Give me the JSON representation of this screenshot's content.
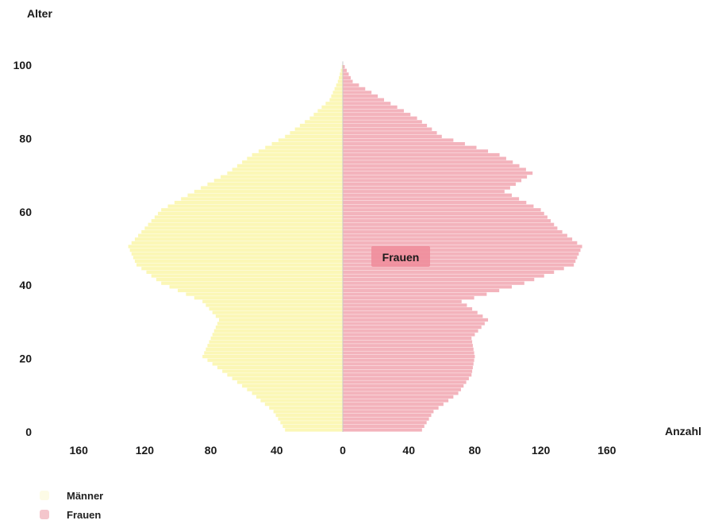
{
  "chart_data": {
    "type": "bar",
    "orientation": "horizontal-pyramid",
    "y_axis_label": "Alter",
    "x_axis_label": "Anzahl",
    "y_ticks": [
      0,
      20,
      40,
      60,
      80,
      100
    ],
    "x_tick_labels": [
      "160",
      "120",
      "80",
      "40",
      "0",
      "40",
      "80",
      "120",
      "160"
    ],
    "age_range": [
      0,
      101
    ],
    "colors": {
      "maenner": "#fbf7b6",
      "frauen": "#ef9aa6"
    },
    "inner_label": "Frauen",
    "series": [
      {
        "name": "Männer",
        "side": "left",
        "ages": [
          0,
          5,
          10,
          15,
          20,
          25,
          30,
          35,
          40,
          45,
          50,
          55,
          60,
          65,
          70,
          75,
          80,
          85,
          90,
          95,
          100
        ],
        "values": [
          35,
          42,
          55,
          70,
          85,
          80,
          75,
          85,
          110,
          125,
          130,
          120,
          110,
          90,
          70,
          55,
          35,
          20,
          8,
          3,
          0
        ]
      },
      {
        "name": "Frauen",
        "side": "right",
        "ages": [
          0,
          5,
          10,
          15,
          20,
          25,
          30,
          35,
          40,
          45,
          50,
          55,
          60,
          65,
          70,
          75,
          80,
          85,
          90,
          95,
          100
        ],
        "values": [
          48,
          55,
          70,
          78,
          80,
          78,
          88,
          72,
          110,
          140,
          145,
          130,
          120,
          98,
          115,
          95,
          60,
          45,
          25,
          6,
          0
        ]
      }
    ]
  }
}
